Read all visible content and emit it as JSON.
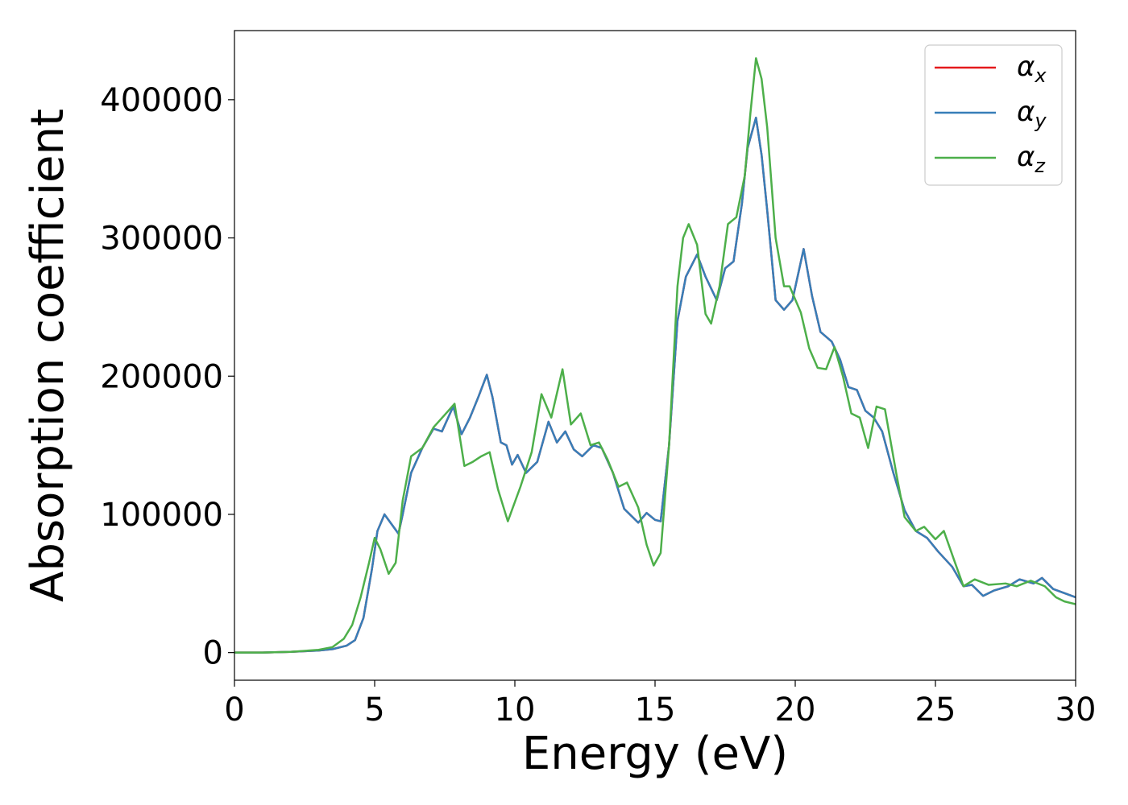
{
  "chart_data": {
    "type": "line",
    "title": "",
    "xlabel": "Energy (eV)",
    "ylabel": "Absorption coefficient",
    "xlim": [
      0,
      30
    ],
    "ylim": [
      -20000,
      450000
    ],
    "xticks": [
      0,
      5,
      10,
      15,
      20,
      25,
      30
    ],
    "xtick_labels": [
      "0",
      "5",
      "10",
      "15",
      "20",
      "25",
      "30"
    ],
    "yticks": [
      0,
      100000,
      200000,
      300000,
      400000
    ],
    "ytick_labels": [
      "0",
      "100000",
      "200000",
      "300000",
      "400000"
    ],
    "grid": false,
    "legend_position": "top-right",
    "colors": {
      "alpha_x": "#e41a1c",
      "alpha_y": "#377eb8",
      "alpha_z": "#4daf4a"
    },
    "series": [
      {
        "name": "αx",
        "legend_symbol": "α",
        "legend_subscript": "x",
        "color": "#e41a1c",
        "x": [
          0,
          1,
          2,
          3,
          3.5,
          4,
          4.3,
          4.6,
          4.9,
          5.1,
          5.35,
          5.6,
          5.85,
          6.0,
          6.3,
          6.7,
          7.1,
          7.4,
          7.8,
          8.1,
          8.4,
          8.7,
          9.0,
          9.2,
          9.5,
          9.7,
          9.9,
          10.1,
          10.4,
          10.8,
          11.2,
          11.5,
          11.8,
          12.1,
          12.4,
          12.8,
          13.1,
          13.5,
          13.9,
          14.4,
          14.7,
          15.0,
          15.2,
          15.5,
          15.8,
          16.1,
          16.5,
          16.8,
          17.2,
          17.5,
          17.8,
          18.1,
          18.3,
          18.6,
          18.8,
          19.0,
          19.3,
          19.6,
          19.9,
          20.3,
          20.6,
          20.9,
          21.3,
          21.6,
          21.9,
          22.2,
          22.5,
          22.8,
          23.1,
          23.5,
          23.9,
          24.3,
          24.7,
          25.1,
          25.6,
          26.0,
          26.3,
          26.7,
          27.1,
          27.6,
          28.0,
          28.5,
          28.8,
          29.2,
          29.6,
          30
        ],
        "values": [
          0,
          0,
          500,
          1500,
          2500,
          5000,
          9000,
          25000,
          60000,
          88000,
          100000,
          93000,
          86000,
          100000,
          130000,
          148000,
          162000,
          160000,
          178000,
          158000,
          170000,
          185000,
          201000,
          185000,
          152000,
          150000,
          136000,
          143000,
          130000,
          138000,
          167000,
          152000,
          160000,
          147000,
          142000,
          150000,
          148000,
          130000,
          104000,
          94000,
          101000,
          96000,
          95000,
          150000,
          240000,
          272000,
          288000,
          272000,
          255000,
          278000,
          283000,
          325000,
          365000,
          387000,
          360000,
          320000,
          255000,
          248000,
          255000,
          292000,
          258000,
          232000,
          225000,
          212000,
          192000,
          190000,
          175000,
          170000,
          160000,
          130000,
          103000,
          88000,
          83000,
          73000,
          62000,
          48000,
          49000,
          41000,
          45000,
          48000,
          53000,
          50000,
          54000,
          46000,
          43000,
          40000
        ]
      },
      {
        "name": "αy",
        "legend_symbol": "α",
        "legend_subscript": "y",
        "color": "#377eb8",
        "x": [
          0,
          1,
          2,
          3,
          3.5,
          4,
          4.3,
          4.6,
          4.9,
          5.1,
          5.35,
          5.6,
          5.85,
          6.0,
          6.3,
          6.7,
          7.1,
          7.4,
          7.8,
          8.1,
          8.4,
          8.7,
          9.0,
          9.2,
          9.5,
          9.7,
          9.9,
          10.1,
          10.4,
          10.8,
          11.2,
          11.5,
          11.8,
          12.1,
          12.4,
          12.8,
          13.1,
          13.5,
          13.9,
          14.4,
          14.7,
          15.0,
          15.2,
          15.5,
          15.8,
          16.1,
          16.5,
          16.8,
          17.2,
          17.5,
          17.8,
          18.1,
          18.3,
          18.6,
          18.8,
          19.0,
          19.3,
          19.6,
          19.9,
          20.3,
          20.6,
          20.9,
          21.3,
          21.6,
          21.9,
          22.2,
          22.5,
          22.8,
          23.1,
          23.5,
          23.9,
          24.3,
          24.7,
          25.1,
          25.6,
          26.0,
          26.3,
          26.7,
          27.1,
          27.6,
          28.0,
          28.5,
          28.8,
          29.2,
          29.6,
          30
        ],
        "values": [
          0,
          0,
          500,
          1500,
          2500,
          5000,
          9000,
          25000,
          60000,
          88000,
          100000,
          93000,
          86000,
          100000,
          130000,
          148000,
          162000,
          160000,
          178000,
          158000,
          170000,
          185000,
          201000,
          185000,
          152000,
          150000,
          136000,
          143000,
          130000,
          138000,
          167000,
          152000,
          160000,
          147000,
          142000,
          150000,
          148000,
          130000,
          104000,
          94000,
          101000,
          96000,
          95000,
          150000,
          240000,
          272000,
          288000,
          272000,
          255000,
          278000,
          283000,
          325000,
          365000,
          387000,
          360000,
          320000,
          255000,
          248000,
          255000,
          292000,
          258000,
          232000,
          225000,
          212000,
          192000,
          190000,
          175000,
          170000,
          160000,
          130000,
          103000,
          88000,
          83000,
          73000,
          62000,
          48000,
          49000,
          41000,
          45000,
          48000,
          53000,
          50000,
          54000,
          46000,
          43000,
          40000
        ]
      },
      {
        "name": "αz",
        "legend_symbol": "α",
        "legend_subscript": "z",
        "color": "#4daf4a",
        "x": [
          0,
          1,
          2,
          3,
          3.5,
          3.9,
          4.2,
          4.5,
          4.8,
          5.0,
          5.2,
          5.5,
          5.75,
          6.0,
          6.3,
          6.7,
          7.1,
          7.5,
          7.85,
          8.2,
          8.5,
          8.8,
          9.1,
          9.4,
          9.75,
          10.2,
          10.6,
          10.95,
          11.3,
          11.7,
          12.0,
          12.35,
          12.7,
          13.0,
          13.3,
          13.7,
          14.0,
          14.4,
          14.7,
          14.95,
          15.2,
          15.5,
          15.8,
          16.0,
          16.2,
          16.5,
          16.8,
          17.0,
          17.3,
          17.6,
          17.9,
          18.2,
          18.4,
          18.6,
          18.8,
          19.0,
          19.3,
          19.6,
          19.8,
          20.2,
          20.5,
          20.8,
          21.1,
          21.4,
          21.7,
          22.0,
          22.3,
          22.6,
          22.9,
          23.2,
          23.6,
          23.9,
          24.3,
          24.6,
          25.0,
          25.3,
          25.7,
          26.0,
          26.4,
          26.9,
          27.5,
          27.9,
          28.4,
          28.9,
          29.3,
          29.6,
          30
        ],
        "values": [
          0,
          0,
          500,
          2000,
          4000,
          10000,
          20000,
          40000,
          65000,
          83000,
          75000,
          57000,
          65000,
          110000,
          142000,
          148000,
          163000,
          172000,
          180000,
          135000,
          138000,
          142000,
          145000,
          118000,
          95000,
          120000,
          145000,
          187000,
          170000,
          205000,
          165000,
          173000,
          150000,
          152000,
          140000,
          120000,
          123000,
          105000,
          78000,
          63000,
          72000,
          150000,
          265000,
          300000,
          310000,
          295000,
          245000,
          238000,
          265000,
          310000,
          315000,
          345000,
          390000,
          430000,
          415000,
          380000,
          300000,
          265000,
          265000,
          246000,
          220000,
          206000,
          205000,
          221000,
          200000,
          173000,
          170000,
          148000,
          178000,
          176000,
          130000,
          98000,
          88000,
          91000,
          82000,
          88000,
          65000,
          48000,
          53000,
          49000,
          50000,
          48000,
          52000,
          48000,
          40000,
          37000,
          35000
        ]
      }
    ]
  }
}
